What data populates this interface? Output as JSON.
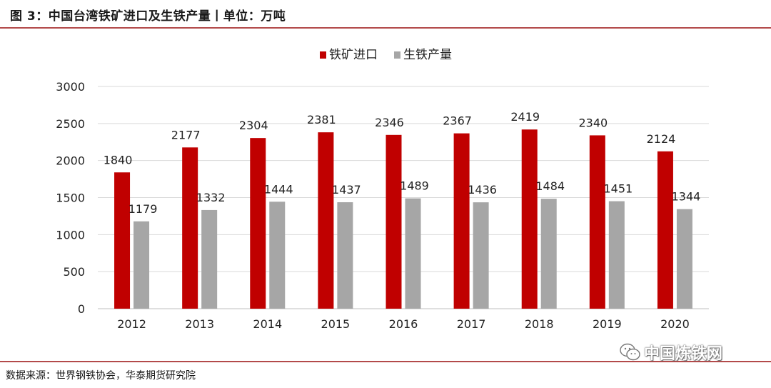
{
  "header": {
    "title": "图 3：中国台湾铁矿进口及生铁产量丨单位：万吨"
  },
  "footer": {
    "source": "数据来源：世界钢铁协会，华泰期货研究院",
    "watermark": "中国炼铁网"
  },
  "colors": {
    "series1": "#c00000",
    "series2": "#a6a6a6",
    "grid": "#d9d9d9",
    "rule": "#b34a4a"
  },
  "chart_data": {
    "type": "bar",
    "title": "",
    "xlabel": "",
    "ylabel": "",
    "categories": [
      "2012",
      "2013",
      "2014",
      "2015",
      "2016",
      "2017",
      "2018",
      "2019",
      "2020"
    ],
    "series": [
      {
        "name": "铁矿进口",
        "values": [
          1840,
          2177,
          2304,
          2381,
          2346,
          2367,
          2419,
          2340,
          2124
        ]
      },
      {
        "name": "生铁产量",
        "values": [
          1179,
          1332,
          1444,
          1437,
          1489,
          1436,
          1484,
          1451,
          1344
        ]
      }
    ],
    "ylim": [
      0,
      3000
    ],
    "yticks": [
      0,
      500,
      1000,
      1500,
      2000,
      2500,
      3000
    ],
    "grid": true,
    "legend_position": "top-center",
    "data_labels": true
  }
}
